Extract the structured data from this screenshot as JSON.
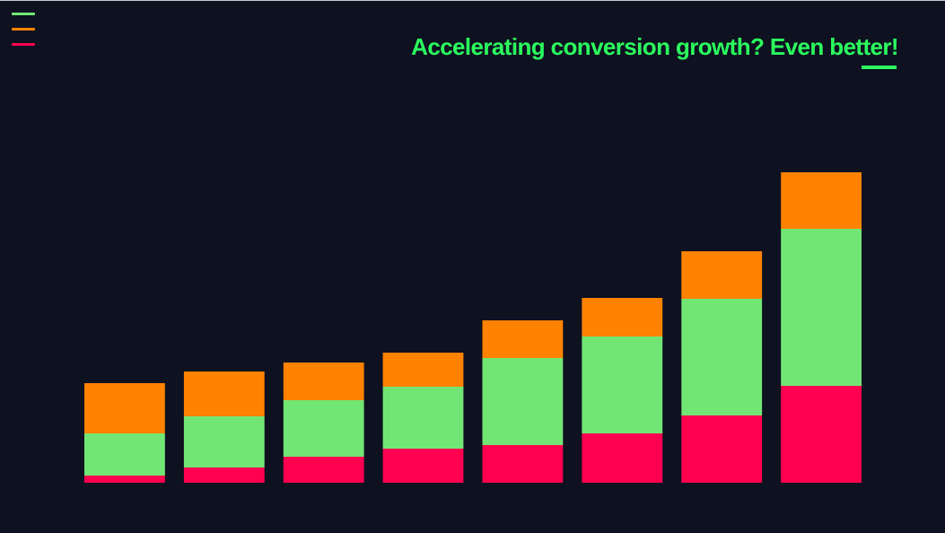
{
  "title": "Accelerating conversion growth? Even better!",
  "colors": {
    "background": "#0e1120",
    "title": "#2bff5e",
    "bottom": "#ff0050",
    "middle": "#72e675",
    "top": "#ff8200"
  },
  "legend": [
    {
      "color": "#72e675"
    },
    {
      "color": "#ff8200"
    },
    {
      "color": "#ff0050"
    }
  ],
  "chart_data": {
    "type": "bar",
    "stacked": true,
    "categories": [
      "",
      "",
      "",
      "",
      "",
      "",
      "",
      ""
    ],
    "series": [
      {
        "values": [
          8,
          17,
          29,
          38,
          42,
          55,
          75,
          108
        ],
        "color": "#ff0050"
      },
      {
        "values": [
          47,
          57,
          63,
          69,
          97,
          108,
          130,
          175
        ],
        "color": "#72e675"
      },
      {
        "values": [
          56,
          50,
          42,
          38,
          42,
          43,
          53,
          63
        ],
        "color": "#ff8200"
      }
    ],
    "ylim": [
      0,
      360
    ],
    "grid": false,
    "legend": "top-left"
  }
}
